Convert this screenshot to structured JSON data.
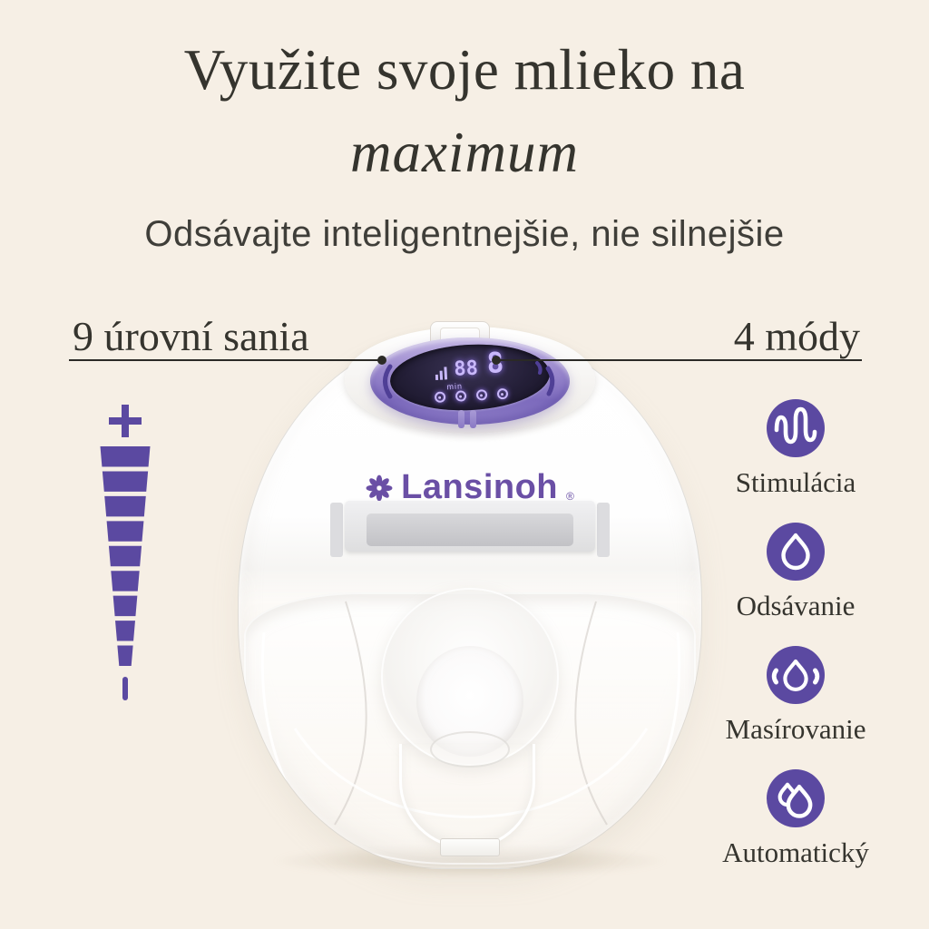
{
  "colors": {
    "background": "#f6efe5",
    "accent": "#5b49a1",
    "logo_purple": "#6a4fa5",
    "heading": "#35342e",
    "body_text": "#3f3e39",
    "line": "#2b2a26",
    "led_glow": "#c9b8fa",
    "ring_light": "#c3b5e4",
    "ring_dark": "#7e6cbe"
  },
  "header": {
    "title_line1": "Využite svoje mlieko na",
    "title_line2": "maximum",
    "subtitle": "Odsávajte inteligentnejšie, nie silnejšie"
  },
  "callouts": {
    "left_label": "9 úrovní sania",
    "right_label": "4 módy"
  },
  "suction_scale": {
    "plus": "+",
    "levels": 9,
    "minus": "−"
  },
  "device": {
    "brand": "Lansinoh",
    "registered_mark": "®",
    "display": {
      "battery_icon": "battery-bars-icon",
      "timer_digits": "88",
      "timer_unit": "min",
      "level_digit": "8",
      "mode_icons_count": 4
    }
  },
  "modes": [
    {
      "label": "Stimulácia",
      "icon": "stimulation-wave-icon"
    },
    {
      "label": "Odsávanie",
      "icon": "suction-drop-icon"
    },
    {
      "label": "Masírovanie",
      "icon": "massage-drop-icon"
    },
    {
      "label": "Automatický",
      "icon": "auto-drops-icon"
    }
  ]
}
